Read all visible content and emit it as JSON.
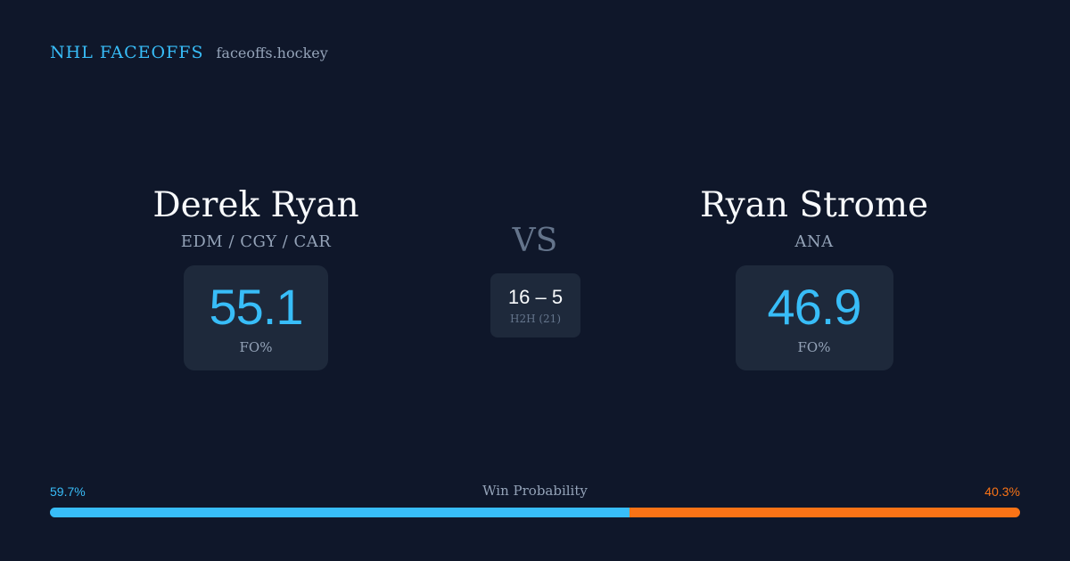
{
  "brand": {
    "title": "NHL FACEOFFS",
    "site": "faceoffs.hockey"
  },
  "player_left": {
    "name": "Derek Ryan",
    "teams": "EDM / CGY / CAR",
    "fo_pct": "55.1",
    "fo_label": "FO%"
  },
  "player_right": {
    "name": "Ryan Strome",
    "teams": "ANA",
    "fo_pct": "46.9",
    "fo_label": "FO%"
  },
  "versus": {
    "label": "VS",
    "h2h_score": "16 – 5",
    "h2h_label": "H2H (21)"
  },
  "win_probability": {
    "title": "Win Probability",
    "left_label": "59.7%",
    "right_label": "40.3%",
    "left_value": 59.7,
    "right_value": 40.3,
    "left_color": "#38bdf8",
    "right_color": "#f97316"
  }
}
